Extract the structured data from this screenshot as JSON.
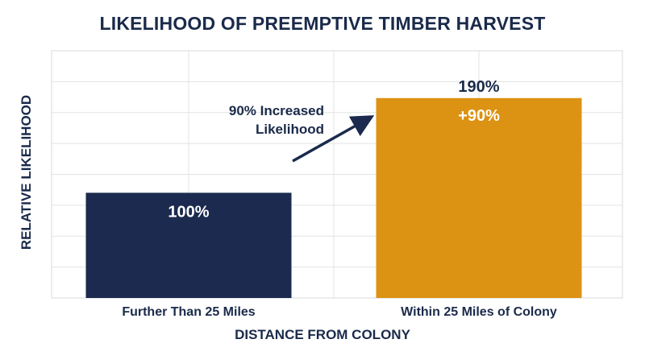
{
  "chart_data": {
    "type": "bar",
    "title": "LIKELIHOOD OF PREEMPTIVE TIMBER HARVEST",
    "xlabel": "DISTANCE FROM COLONY",
    "ylabel": "RELATIVE LIKELIHOOD",
    "categories": [
      "Further Than 25 Miles",
      "Within 25 Miles of Colony"
    ],
    "values": [
      100,
      190
    ],
    "value_labels": [
      "100%",
      "190%"
    ],
    "bar_colors": [
      "#1b2a4e",
      "#dc9212"
    ],
    "ylim": [
      0,
      235
    ],
    "grid": true,
    "annotations": {
      "increase_label": "+90%",
      "arrow_text_line1": "90% Increased",
      "arrow_text_line2": "Likelihood"
    }
  }
}
